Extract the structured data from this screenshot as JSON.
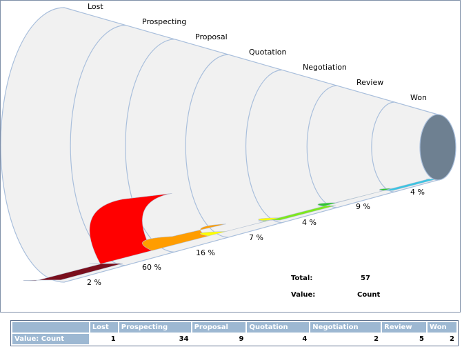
{
  "chart_data": {
    "type": "funnel",
    "title": "",
    "categories": [
      "Lost",
      "Prospecting",
      "Proposal",
      "Quotation",
      "Negotiation",
      "Review",
      "Won"
    ],
    "values": [
      1,
      34,
      9,
      4,
      2,
      5,
      2
    ],
    "percent_labels": [
      "2 %",
      "60 %",
      "16 %",
      "7 %",
      "4 %",
      "9 %",
      "4 %"
    ],
    "colors": [
      "#7a0f1d",
      "#ff0000",
      "#ff9d00",
      "#ffff00",
      "#7ee81e",
      "#2ec62e",
      "#3bc4e2"
    ],
    "end_cap_color": "#6e8091",
    "tube_color": "#f1f1f1",
    "rim_color": "#a9bfdc"
  },
  "summary": {
    "total_label": "Total:",
    "total_value": "57",
    "value_label": "Value:",
    "value_value": "Count"
  },
  "table": {
    "row_header": "Value: Count",
    "columns": [
      "Lost",
      "Prospecting",
      "Proposal",
      "Quotation",
      "Negotiation",
      "Review",
      "Won"
    ],
    "values": [
      "1",
      "34",
      "9",
      "4",
      "2",
      "5",
      "2"
    ]
  }
}
